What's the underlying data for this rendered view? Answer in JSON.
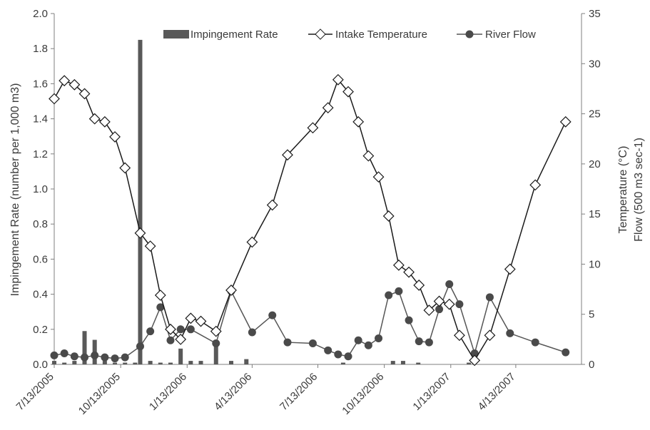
{
  "chart_data": {
    "type": "line",
    "x_type": "date",
    "x_range": [
      "2005-07-13",
      "2007-07-13"
    ],
    "x_tick_dates": [
      "2005-07-13",
      "2005-10-13",
      "2006-01-13",
      "2006-04-13",
      "2006-07-13",
      "2006-10-13",
      "2007-01-13",
      "2007-04-13"
    ],
    "x_tick_labels": [
      "7/13/2005",
      "10/13/2005",
      "1/13/2006",
      "4/13/2006",
      "7/13/2006",
      "10/13/2006",
      "1/13/2007",
      "4/13/2007"
    ],
    "ylabel_left": "Impingement Rate (number per 1,000 m3)",
    "ylabel_right_1": "Temperature (°C)",
    "ylabel_right_2": "Flow (500 m3 sec-1)",
    "ylim_left": [
      0,
      2.0
    ],
    "yticks_left": [
      "0.0",
      "0.2",
      "0.4",
      "0.6",
      "0.8",
      "1.0",
      "1.2",
      "1.4",
      "1.6",
      "1.8",
      "2.0"
    ],
    "ylim_right": [
      0,
      35
    ],
    "yticks_right": [
      "0",
      "5",
      "10",
      "15",
      "20",
      "25",
      "30",
      "35"
    ],
    "grid": false,
    "legend_placement": "top",
    "legend": [
      "Impingement Rate",
      "Intake Temperature",
      "River Flow"
    ],
    "colors": {
      "bar": "#595959",
      "temp_line": "#1a1a1a",
      "temp_marker_fill": "#ffffff",
      "flow_line": "#555555",
      "flow_marker": "#4a4a4a",
      "axis": "#7f7f7f"
    },
    "series": [
      {
        "name": "Impingement Rate",
        "kind": "bar",
        "axis": "left",
        "points": [
          [
            "2005-07-13",
            0.02
          ],
          [
            "2005-07-27",
            0.01
          ],
          [
            "2005-08-10",
            0.02
          ],
          [
            "2005-08-24",
            0.19
          ],
          [
            "2005-09-07",
            0.14
          ],
          [
            "2005-09-21",
            0.02
          ],
          [
            "2005-10-05",
            0.01
          ],
          [
            "2005-10-19",
            0.01
          ],
          [
            "2005-11-02",
            0.01
          ],
          [
            "2005-11-09",
            1.85
          ],
          [
            "2005-11-23",
            0.02
          ],
          [
            "2005-12-07",
            0.01
          ],
          [
            "2005-12-21",
            0.01
          ],
          [
            "2006-01-04",
            0.09
          ],
          [
            "2006-01-18",
            0.02
          ],
          [
            "2006-02-01",
            0.02
          ],
          [
            "2006-02-22",
            0.13
          ],
          [
            "2006-03-15",
            0.02
          ],
          [
            "2006-04-05",
            0.03
          ],
          [
            "2006-08-17",
            0.01
          ],
          [
            "2006-10-25",
            0.02
          ],
          [
            "2006-11-08",
            0.02
          ],
          [
            "2006-11-29",
            0.01
          ],
          [
            "2007-02-07",
            0.01
          ]
        ]
      },
      {
        "name": "Intake Temperature",
        "kind": "line",
        "axis": "right",
        "points": [
          [
            "2005-07-13",
            26.5
          ],
          [
            "2005-07-27",
            28.3
          ],
          [
            "2005-08-10",
            27.9
          ],
          [
            "2005-08-24",
            27.0
          ],
          [
            "2005-09-07",
            24.5
          ],
          [
            "2005-09-21",
            24.2
          ],
          [
            "2005-10-05",
            22.7
          ],
          [
            "2005-10-19",
            19.6
          ],
          [
            "2005-11-09",
            13.1
          ],
          [
            "2005-11-23",
            11.8
          ],
          [
            "2005-12-07",
            6.9
          ],
          [
            "2005-12-21",
            3.5
          ],
          [
            "2006-01-04",
            2.5
          ],
          [
            "2006-01-18",
            4.6
          ],
          [
            "2006-02-01",
            4.3
          ],
          [
            "2006-02-22",
            3.3
          ],
          [
            "2006-03-15",
            7.4
          ],
          [
            "2006-04-13",
            12.2
          ],
          [
            "2006-05-11",
            15.9
          ],
          [
            "2006-06-01",
            20.9
          ],
          [
            "2006-07-06",
            23.6
          ],
          [
            "2006-07-27",
            25.6
          ],
          [
            "2006-08-10",
            28.4
          ],
          [
            "2006-08-24",
            27.2
          ],
          [
            "2006-09-07",
            24.2
          ],
          [
            "2006-09-21",
            20.8
          ],
          [
            "2006-10-05",
            18.7
          ],
          [
            "2006-10-19",
            14.8
          ],
          [
            "2006-11-02",
            9.9
          ],
          [
            "2006-11-16",
            9.2
          ],
          [
            "2006-11-30",
            7.9
          ],
          [
            "2006-12-14",
            5.4
          ],
          [
            "2006-12-28",
            6.3
          ],
          [
            "2007-01-11",
            6.0
          ],
          [
            "2007-01-25",
            2.9
          ],
          [
            "2007-02-15",
            0.4
          ],
          [
            "2007-03-08",
            2.9
          ],
          [
            "2007-04-05",
            9.5
          ],
          [
            "2007-05-10",
            17.9
          ],
          [
            "2007-06-21",
            24.2
          ]
        ]
      },
      {
        "name": "River Flow",
        "kind": "line",
        "axis": "right",
        "points": [
          [
            "2005-07-13",
            0.9
          ],
          [
            "2005-07-27",
            1.1
          ],
          [
            "2005-08-10",
            0.8
          ],
          [
            "2005-08-24",
            0.7
          ],
          [
            "2005-09-07",
            0.9
          ],
          [
            "2005-09-21",
            0.7
          ],
          [
            "2005-10-05",
            0.6
          ],
          [
            "2005-10-19",
            0.7
          ],
          [
            "2005-11-09",
            1.8
          ],
          [
            "2005-11-23",
            3.3
          ],
          [
            "2005-12-07",
            5.7
          ],
          [
            "2005-12-21",
            2.4
          ],
          [
            "2006-01-04",
            3.5
          ],
          [
            "2006-01-18",
            3.5
          ],
          [
            "2006-02-22",
            2.1
          ],
          [
            "2006-03-15",
            7.3
          ],
          [
            "2006-04-13",
            3.2
          ],
          [
            "2006-05-11",
            4.9
          ],
          [
            "2006-06-01",
            2.2
          ],
          [
            "2006-07-06",
            2.1
          ],
          [
            "2006-07-27",
            1.4
          ],
          [
            "2006-08-10",
            1.0
          ],
          [
            "2006-08-24",
            0.8
          ],
          [
            "2006-09-07",
            2.4
          ],
          [
            "2006-09-21",
            1.9
          ],
          [
            "2006-10-05",
            2.6
          ],
          [
            "2006-10-19",
            6.9
          ],
          [
            "2006-11-02",
            7.3
          ],
          [
            "2006-11-16",
            4.4
          ],
          [
            "2006-11-30",
            2.3
          ],
          [
            "2006-12-14",
            2.2
          ],
          [
            "2006-12-28",
            5.5
          ],
          [
            "2007-01-11",
            8.0
          ],
          [
            "2007-01-25",
            6.0
          ],
          [
            "2007-02-15",
            1.1
          ],
          [
            "2007-03-08",
            6.7
          ],
          [
            "2007-04-05",
            3.1
          ],
          [
            "2007-05-10",
            2.2
          ],
          [
            "2007-06-21",
            1.2
          ]
        ]
      }
    ]
  }
}
